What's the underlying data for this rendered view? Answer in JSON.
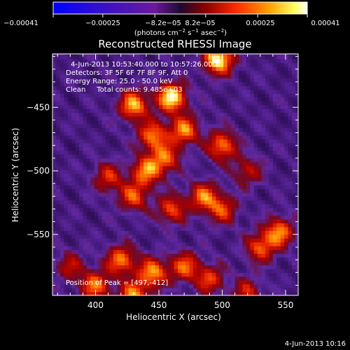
{
  "colorbar": {
    "tick_labels": [
      "−0.00041",
      "−0.00025",
      "−8.2e−05",
      "8.2e−05",
      "0.00025",
      "0.00041"
    ],
    "tick_values": [
      -0.00041,
      -0.00025,
      -8.2e-05,
      8.2e-05,
      0.00025,
      0.00041
    ],
    "units_prefix": "(photons cm",
    "units_exp1": "−2",
    "units_mid": " s",
    "units_exp2": "−1",
    "units_mid2": " asec",
    "units_exp3": "−2",
    "units_suffix": ")"
  },
  "title": "Reconstructed RHESSI Image",
  "annotations": {
    "time_range": "4-Jun-2013 10:53:40.000 to 10:57:26.000",
    "detectors": "Detectors: 3F 5F 6F 7F 8F 9F, Att 0",
    "energy": "Energy Range: 25.0 - 50.0 keV",
    "clean": "Clean     Total counts: 9.485e+03",
    "peak": "Position of Peak = [497,-412]"
  },
  "footer_timestamp": "4-Jun-2013 10:16",
  "chart_data": {
    "type": "heatmap",
    "title": "Reconstructed RHESSI Image",
    "xlabel": "Heliocentric X (arcsec)",
    "ylabel": "Heliocentric Y (arcsec)",
    "xlim": [
      366,
      560
    ],
    "ylim": [
      -598,
      -408
    ],
    "x_ticks": [
      400,
      450,
      500,
      550
    ],
    "y_ticks": [
      -450,
      -500,
      -550
    ],
    "peak_position": [
      497,
      -412
    ],
    "color_scale": {
      "min": -0.00041,
      "max": 0.00041,
      "colormap": "blue-purple-red-yellow-white"
    },
    "features": [
      {
        "x": 460,
        "y": -442,
        "level": 0.97
      },
      {
        "x": 497,
        "y": -412,
        "level": 1.0
      },
      {
        "x": 430,
        "y": -448,
        "level": 0.8
      },
      {
        "x": 470,
        "y": -468,
        "level": 0.72
      },
      {
        "x": 445,
        "y": -472,
        "level": 0.68
      },
      {
        "x": 500,
        "y": -480,
        "level": 0.7
      },
      {
        "x": 455,
        "y": -490,
        "level": 0.62
      },
      {
        "x": 440,
        "y": -500,
        "level": 0.7
      },
      {
        "x": 410,
        "y": -505,
        "level": 0.5
      },
      {
        "x": 430,
        "y": -520,
        "level": 0.6
      },
      {
        "x": 460,
        "y": -530,
        "level": 0.58
      },
      {
        "x": 485,
        "y": -520,
        "level": 0.66
      },
      {
        "x": 500,
        "y": -530,
        "level": 0.55
      },
      {
        "x": 520,
        "y": -500,
        "level": 0.42
      },
      {
        "x": 545,
        "y": -548,
        "level": 0.72
      },
      {
        "x": 530,
        "y": -560,
        "level": 0.6
      },
      {
        "x": 420,
        "y": -570,
        "level": 0.7
      },
      {
        "x": 445,
        "y": -580,
        "level": 0.75
      },
      {
        "x": 470,
        "y": -575,
        "level": 0.62
      },
      {
        "x": 490,
        "y": -585,
        "level": 0.55
      },
      {
        "x": 400,
        "y": -590,
        "level": 0.68
      },
      {
        "x": 430,
        "y": -598,
        "level": 0.72
      },
      {
        "x": 520,
        "y": -595,
        "level": 0.45
      },
      {
        "x": 380,
        "y": -575,
        "level": 0.4
      }
    ]
  }
}
